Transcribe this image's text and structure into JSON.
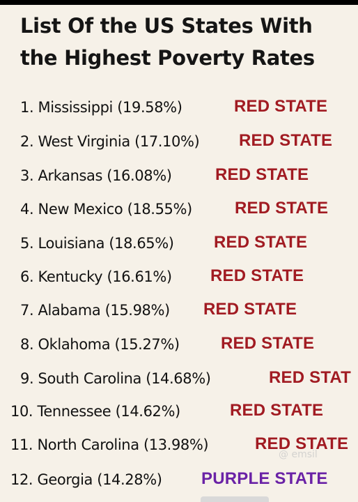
{
  "title": "List Of the US States With the Highest Poverty Rates",
  "colors": {
    "red_state": "#a11b22",
    "purple_state": "#6a22a6",
    "background": "#f6f1e8"
  },
  "states": [
    {
      "entry": "1. Mississippi (19.58%)",
      "tag": "RED STATE",
      "type": "red"
    },
    {
      "entry": "2. West Virginia (17.10%)",
      "tag": "RED STATE",
      "type": "red"
    },
    {
      "entry": "3. Arkansas (16.08%)",
      "tag": "RED STATE",
      "type": "red"
    },
    {
      "entry": "4. New Mexico (18.55%)",
      "tag": "RED STATE",
      "type": "red"
    },
    {
      "entry": "5. Louisiana (18.65%)",
      "tag": "RED STATE",
      "type": "red"
    },
    {
      "entry": "6. Kentucky (16.61%)",
      "tag": "RED STATE",
      "type": "red"
    },
    {
      "entry": "7. Alabama (15.98%)",
      "tag": "RED STATE",
      "type": "red"
    },
    {
      "entry": "8. Oklahoma (15.27%)",
      "tag": "RED STATE",
      "type": "red"
    },
    {
      "entry": "9. South Carolina (14.68%)",
      "tag": "RED STAT",
      "type": "red"
    },
    {
      "entry": "10. Tennessee (14.62%)",
      "tag": "RED STATE",
      "type": "red"
    },
    {
      "entry": "11. North Carolina (13.98%)",
      "tag": "RED STATE",
      "type": "red"
    },
    {
      "entry": "12. Georgia (14.28%)",
      "tag": "PURPLE STATE",
      "type": "purple"
    }
  ],
  "watermark": "@ emsil"
}
